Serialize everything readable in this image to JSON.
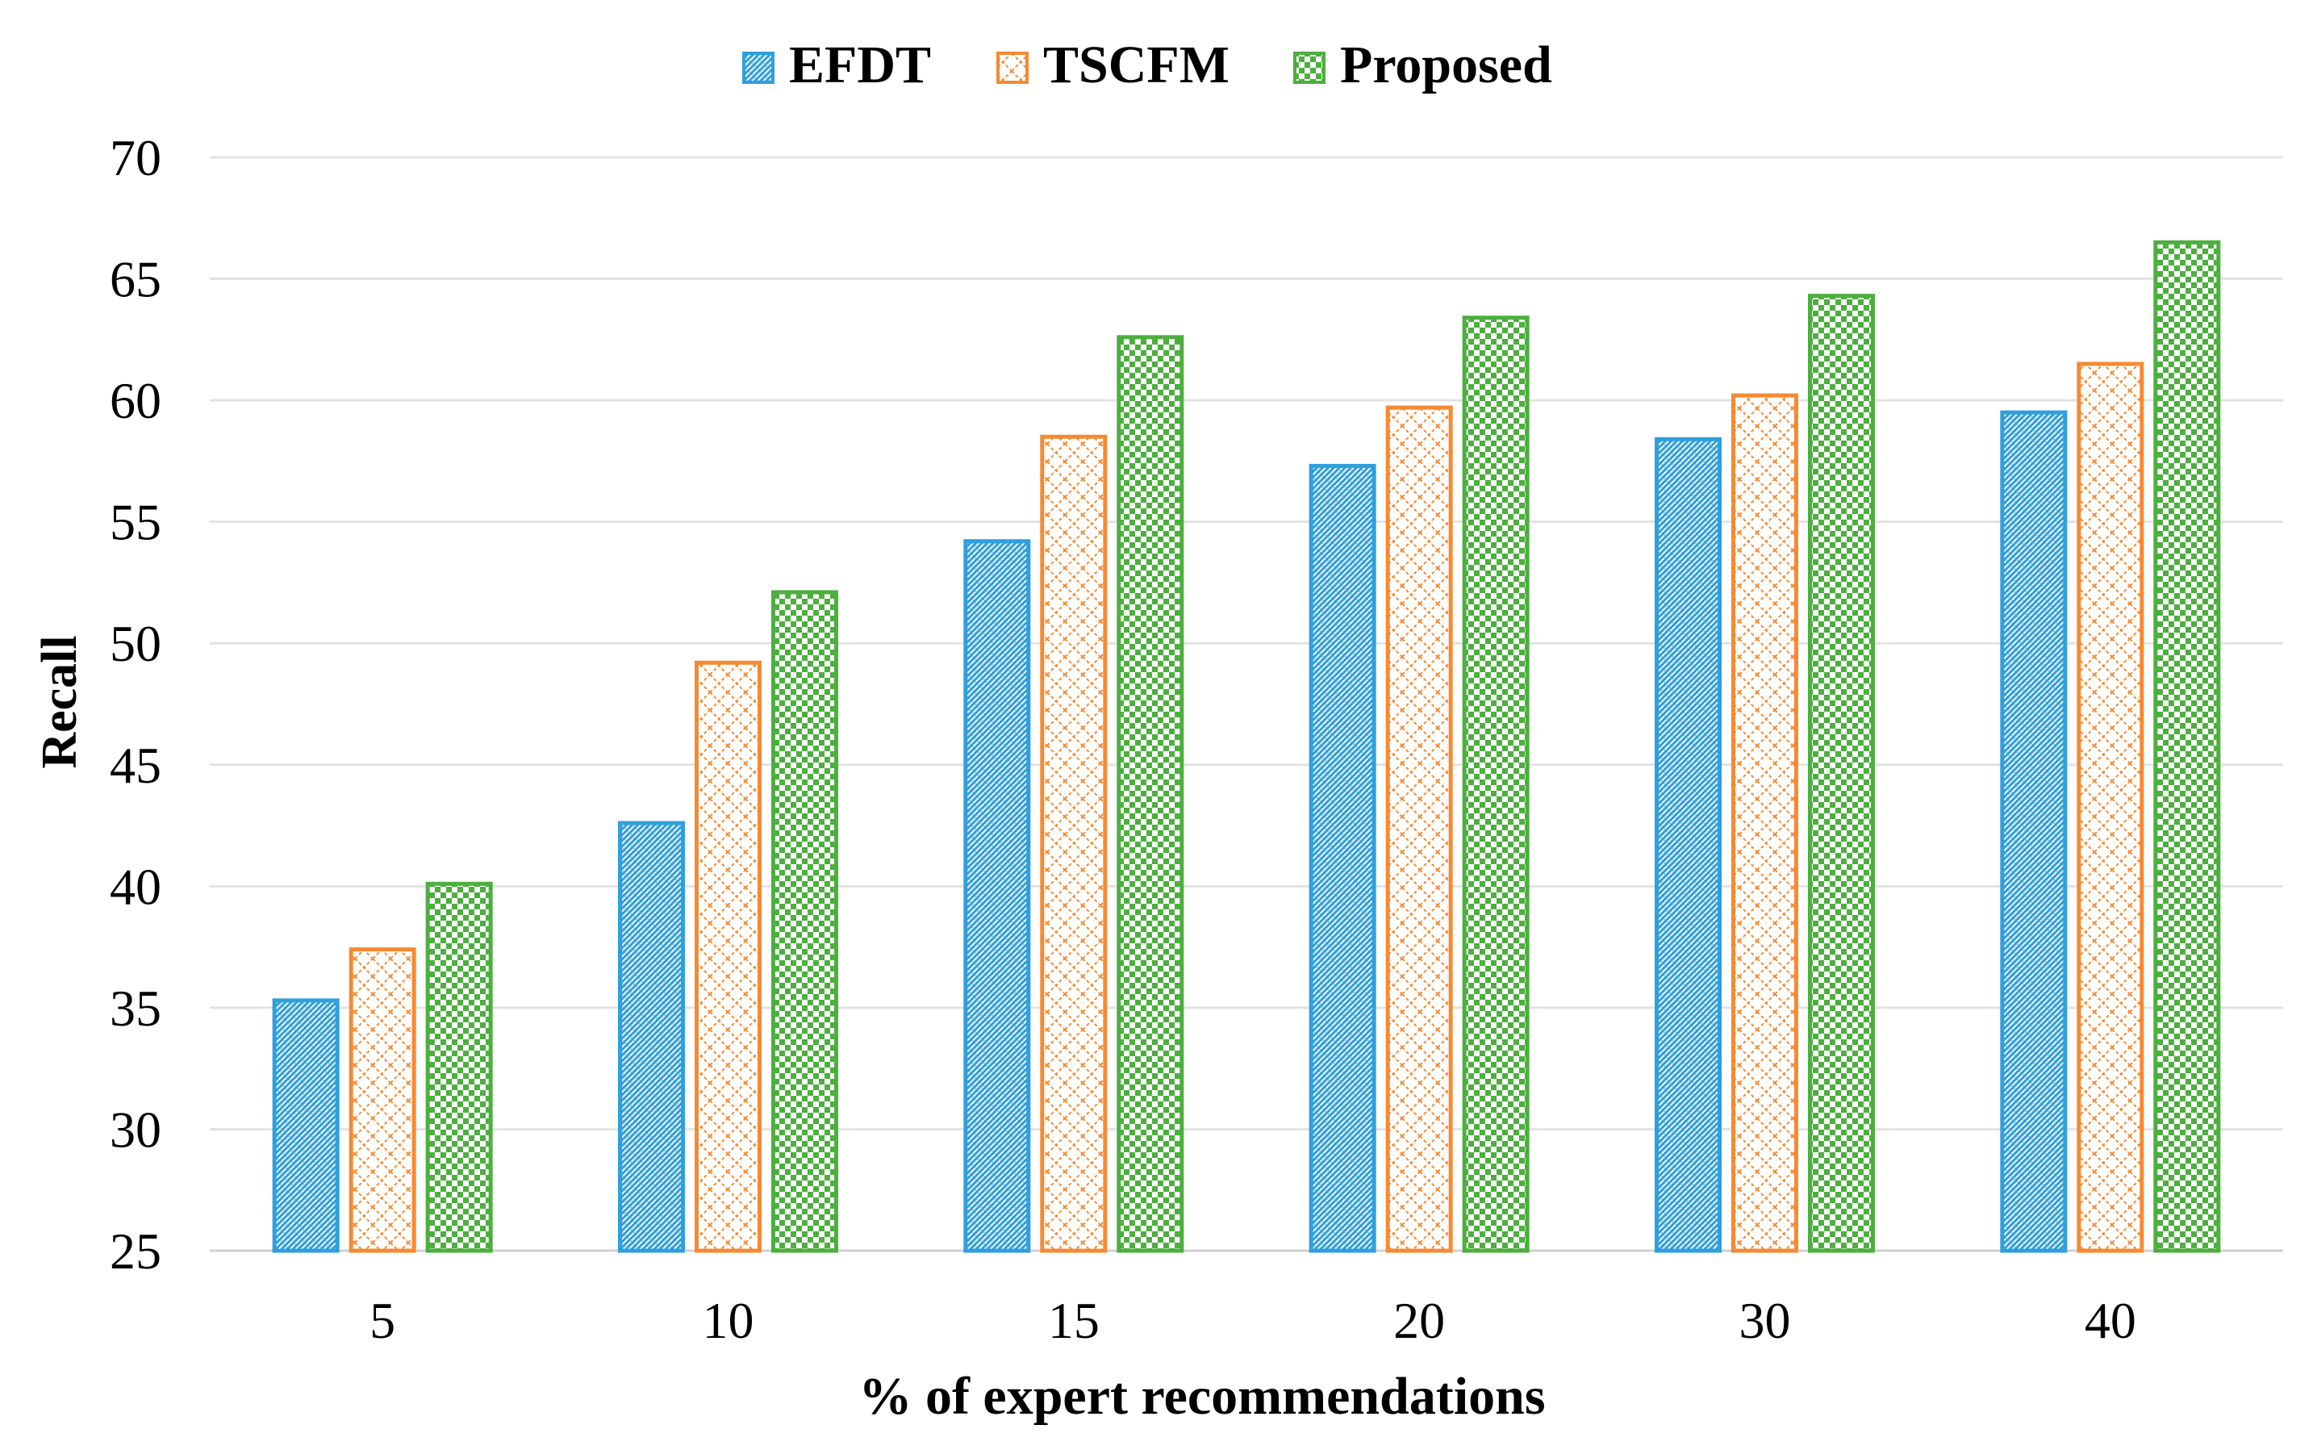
{
  "chart_data": {
    "type": "bar",
    "title": "",
    "xlabel": "% of expert recommendations",
    "ylabel": "Recall",
    "categories": [
      "5",
      "10",
      "15",
      "20",
      "30",
      "40"
    ],
    "series": [
      {
        "name": "EFDT",
        "color": "#2f9fdd",
        "pattern": "dense-diagonal-hatch",
        "values": [
          35.3,
          42.6,
          54.2,
          57.3,
          58.4,
          59.5
        ]
      },
      {
        "name": "TSCFM",
        "color": "#f58a33",
        "pattern": "diagonal-crosshatch",
        "values": [
          37.4,
          49.2,
          58.5,
          59.7,
          60.2,
          61.5
        ]
      },
      {
        "name": "Proposed",
        "color": "#4caf3e",
        "pattern": "checkerboard",
        "values": [
          40.1,
          52.1,
          62.6,
          63.4,
          64.3,
          66.5
        ]
      }
    ],
    "ylim": [
      25,
      70
    ],
    "yticks": [
      25,
      30,
      35,
      40,
      45,
      50,
      55,
      60,
      65,
      70
    ],
    "grid": true,
    "legend_position": "top-center"
  }
}
